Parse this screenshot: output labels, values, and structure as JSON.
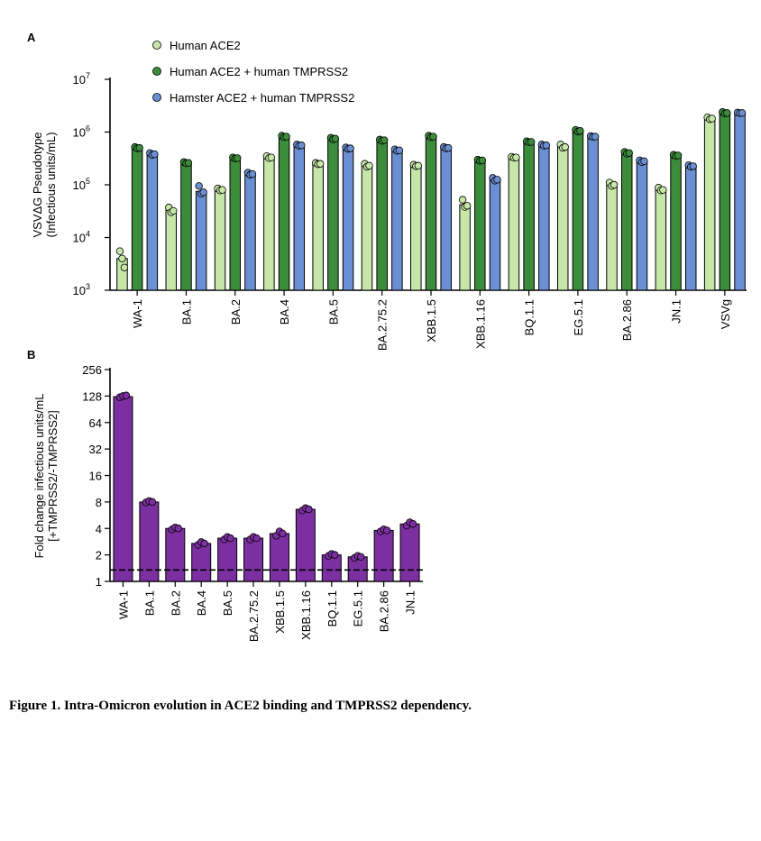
{
  "figure": {
    "caption": "Figure 1. Intra-Omicron evolution in ACE2 binding and TMPRSS2 dependency.",
    "colors": {
      "human_ace2": "#c6e7a8",
      "human_ace2_tmprss2": "#3b8c3b",
      "hamster_ace2_tmprss2": "#6b8fd4",
      "fold_change": "#7b2fa0"
    }
  },
  "chart_data": [
    {
      "panel": "A",
      "type": "bar",
      "scale": "log10",
      "ylabel_line1": "VSVΔG Pseudotype",
      "ylabel_line2": "(Infectious units/mL)",
      "ylim": [
        1000,
        10000000
      ],
      "yticks": [
        {
          "value": 1000,
          "base": "10",
          "exp": "3"
        },
        {
          "value": 10000,
          "base": "10",
          "exp": "4"
        },
        {
          "value": 100000,
          "base": "10",
          "exp": "5"
        },
        {
          "value": 1000000,
          "base": "10",
          "exp": "6"
        },
        {
          "value": 10000000,
          "base": "10",
          "exp": "7"
        }
      ],
      "categories": [
        "WA-1",
        "BA.1",
        "BA.2",
        "BA.4",
        "BA.5",
        "BA.2.75.2",
        "XBB.1.5",
        "XBB.1.16",
        "BQ.1.1",
        "EG.5.1",
        "BA.2.86",
        "JN.1",
        "VSVg"
      ],
      "series": [
        {
          "name": "Human ACE2",
          "color": "#c6e7a8",
          "values": [
            4000,
            33000,
            80000,
            330000,
            250000,
            230000,
            230000,
            42000,
            330000,
            530000,
            100000,
            80000,
            1800000
          ],
          "points": [
            [
              5500,
              4000,
              2700
            ],
            [
              37000,
              30000,
              32000
            ],
            [
              85000,
              78000,
              80000
            ],
            [
              350000,
              320000,
              330000
            ],
            [
              260000,
              245000,
              250000
            ],
            [
              250000,
              220000,
              230000
            ],
            [
              240000,
              225000,
              230000
            ],
            [
              52000,
              38000,
              40000
            ],
            [
              340000,
              325000,
              330000
            ],
            [
              580000,
              500000,
              520000
            ],
            [
              110000,
              95000,
              100000
            ],
            [
              88000,
              78000,
              80000
            ],
            [
              1900000,
              1750000,
              1800000
            ]
          ]
        },
        {
          "name": "Human ACE2 + human TMPRSS2",
          "color": "#3b8c3b",
          "values": [
            500000,
            260000,
            320000,
            820000,
            750000,
            700000,
            820000,
            290000,
            650000,
            1050000,
            400000,
            360000,
            2300000
          ],
          "points": [
            [
              520000,
              490000,
              500000
            ],
            [
              270000,
              255000,
              260000
            ],
            [
              330000,
              315000,
              320000
            ],
            [
              850000,
              800000,
              820000
            ],
            [
              780000,
              730000,
              750000
            ],
            [
              720000,
              680000,
              700000
            ],
            [
              850000,
              800000,
              820000
            ],
            [
              300000,
              285000,
              290000
            ],
            [
              670000,
              640000,
              650000
            ],
            [
              1100000,
              1020000,
              1050000
            ],
            [
              420000,
              390000,
              400000
            ],
            [
              370000,
              350000,
              360000
            ],
            [
              2400000,
              2250000,
              2300000
            ]
          ]
        },
        {
          "name": "Hamster ACE2 + human TMPRSS2",
          "color": "#6b8fd4",
          "values": [
            380000,
            75000,
            160000,
            560000,
            490000,
            450000,
            500000,
            125000,
            560000,
            820000,
            280000,
            225000,
            2300000
          ],
          "points": [
            [
              400000,
              370000,
              380000
            ],
            [
              95000,
              68000,
              72000
            ],
            [
              170000,
              155000,
              160000
            ],
            [
              580000,
              550000,
              560000
            ],
            [
              510000,
              480000,
              490000
            ],
            [
              470000,
              440000,
              450000
            ],
            [
              520000,
              490000,
              500000
            ],
            [
              135000,
              120000,
              125000
            ],
            [
              580000,
              550000,
              560000
            ],
            [
              840000,
              810000,
              820000
            ],
            [
              290000,
              270000,
              280000
            ],
            [
              235000,
              220000,
              225000
            ],
            [
              2350000,
              2280000,
              2300000
            ]
          ]
        }
      ]
    },
    {
      "panel": "B",
      "type": "bar",
      "scale": "log2",
      "ylabel_line1": "Fold change infectious units/mL",
      "ylabel_line2": "[+TMPRSS2/-TMPRSS2]",
      "ylim": [
        1,
        256
      ],
      "yticks": [
        1,
        2,
        4,
        8,
        16,
        32,
        64,
        128,
        256
      ],
      "reference_line": 1.35,
      "categories": [
        "WA-1",
        "BA.1",
        "BA.2",
        "BA.4",
        "BA.5",
        "BA.2.75.2",
        "XBB.1.5",
        "XBB.1.16",
        "BQ.1.1",
        "EG.5.1",
        "BA.2.86",
        "JN.1"
      ],
      "values": [
        126,
        8,
        4,
        2.7,
        3.1,
        3.1,
        3.5,
        6.6,
        2.0,
        1.9,
        3.8,
        4.5
      ],
      "points": [
        [
          124,
          128,
          130
        ],
        [
          7.9,
          8.2,
          8.0
        ],
        [
          3.9,
          4.1,
          4.0
        ],
        [
          2.6,
          2.8,
          2.7
        ],
        [
          3.0,
          3.2,
          3.1
        ],
        [
          3.0,
          3.2,
          3.1
        ],
        [
          3.3,
          3.7,
          3.5
        ],
        [
          6.4,
          6.8,
          6.6
        ],
        [
          1.95,
          2.05,
          2.0
        ],
        [
          1.85,
          1.95,
          1.9
        ],
        [
          3.7,
          3.9,
          3.8
        ],
        [
          4.3,
          4.7,
          4.5
        ]
      ]
    }
  ]
}
